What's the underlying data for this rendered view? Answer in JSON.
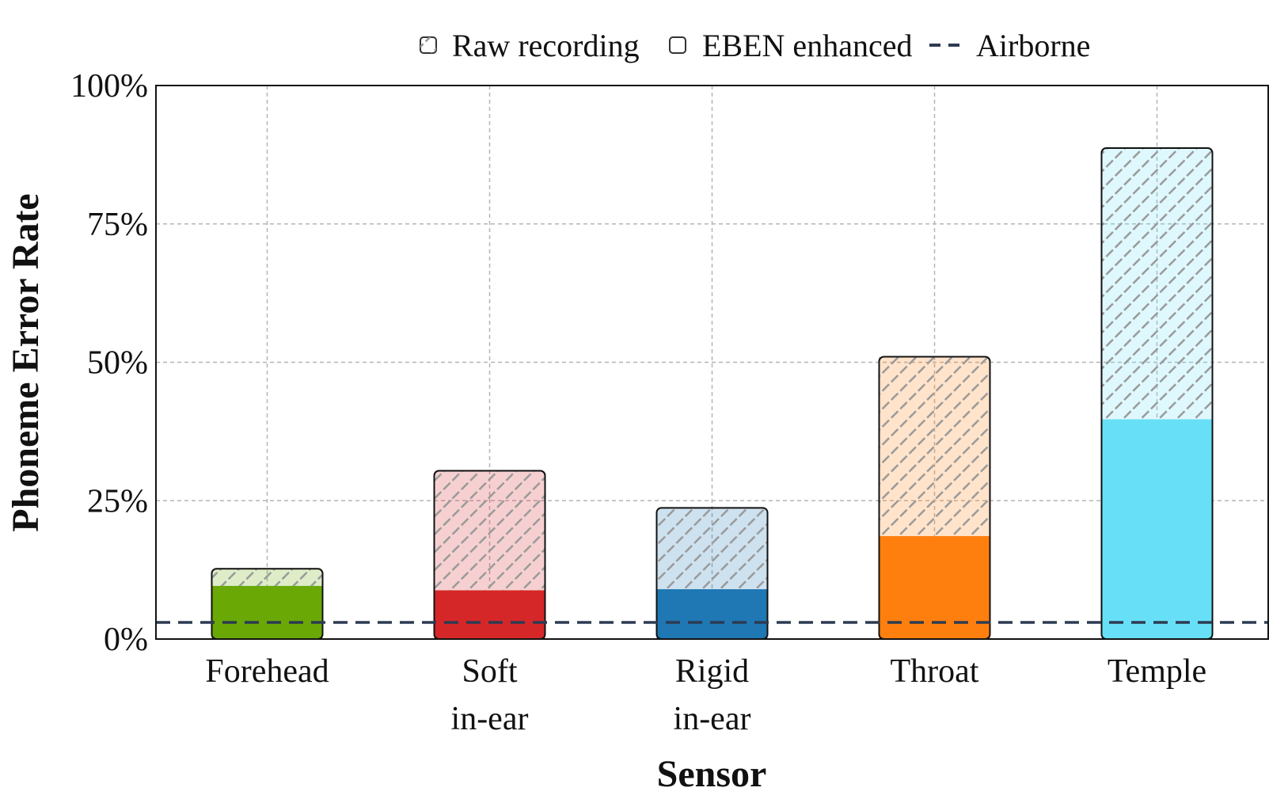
{
  "chart_data": {
    "type": "bar",
    "title": "",
    "xlabel": "Sensor",
    "ylabel": "Phoneme Error Rate",
    "ylim": [
      0,
      100
    ],
    "yticks": [
      "0%",
      "25%",
      "50%",
      "75%",
      "100%"
    ],
    "ytick_values": [
      0,
      25,
      50,
      75,
      100
    ],
    "grid": true,
    "legend_position": "top-center",
    "categories": [
      {
        "lines": [
          "Forehead"
        ],
        "color": "#6aa806"
      },
      {
        "lines": [
          "Soft",
          "in-ear"
        ],
        "color": "#d62728"
      },
      {
        "lines": [
          "Rigid",
          "in-ear"
        ],
        "color": "#1f77b4"
      },
      {
        "lines": [
          "Throat"
        ],
        "color": "#ff7f0e"
      },
      {
        "lines": [
          "Temple"
        ],
        "color": "#67e0f7"
      }
    ],
    "series": [
      {
        "name": "Raw recording",
        "style": "hatched-light",
        "values": [
          12.7,
          30.4,
          23.7,
          51.0,
          88.7
        ]
      },
      {
        "name": "EBEN enhanced",
        "style": "solid",
        "values": [
          9.6,
          8.8,
          9.0,
          18.6,
          39.7
        ]
      }
    ],
    "reference_line": {
      "name": "Airborne",
      "value": 3.0,
      "style": "dashed",
      "color": "#2d3b52"
    }
  }
}
